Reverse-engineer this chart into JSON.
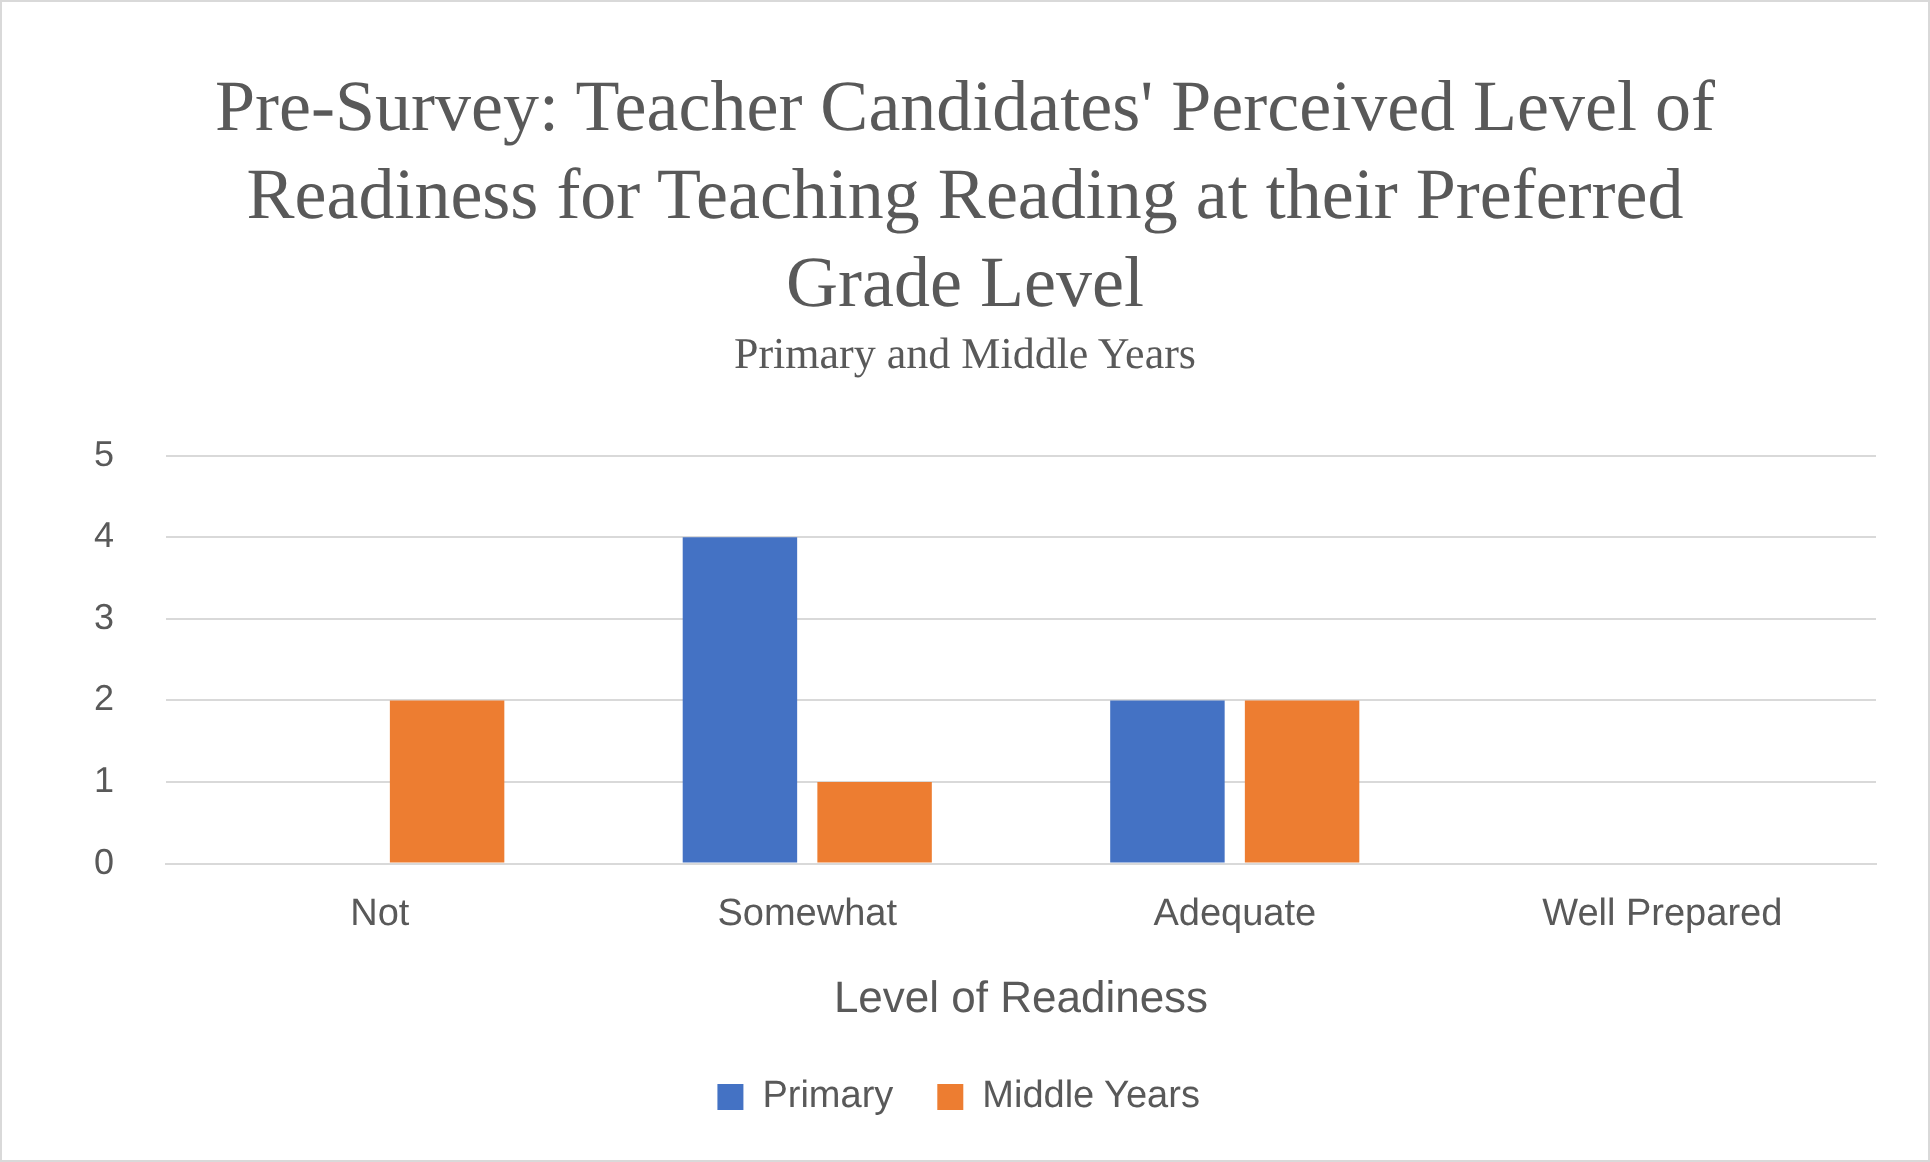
{
  "chart_data": {
    "type": "bar",
    "title": "Pre-Survey: Teacher Candidates' Perceived Level of Readiness for Teaching Reading at their Preferred Grade Level",
    "subtitle": "Primary and Middle Years",
    "xlabel": "Level of Readiness",
    "categories": [
      "Not",
      "Somewhat",
      "Adequate",
      "Well Prepared"
    ],
    "series": [
      {
        "name": "Primary",
        "color": "#4472c4",
        "values": [
          0,
          4,
          2,
          0
        ]
      },
      {
        "name": "Middle Years",
        "color": "#ed7d31",
        "values": [
          2,
          1,
          2,
          0
        ]
      }
    ],
    "ylim": [
      0,
      5
    ],
    "yticks": [
      0,
      1,
      2,
      3,
      4,
      5
    ],
    "grid": "y",
    "legend": "bottom"
  }
}
